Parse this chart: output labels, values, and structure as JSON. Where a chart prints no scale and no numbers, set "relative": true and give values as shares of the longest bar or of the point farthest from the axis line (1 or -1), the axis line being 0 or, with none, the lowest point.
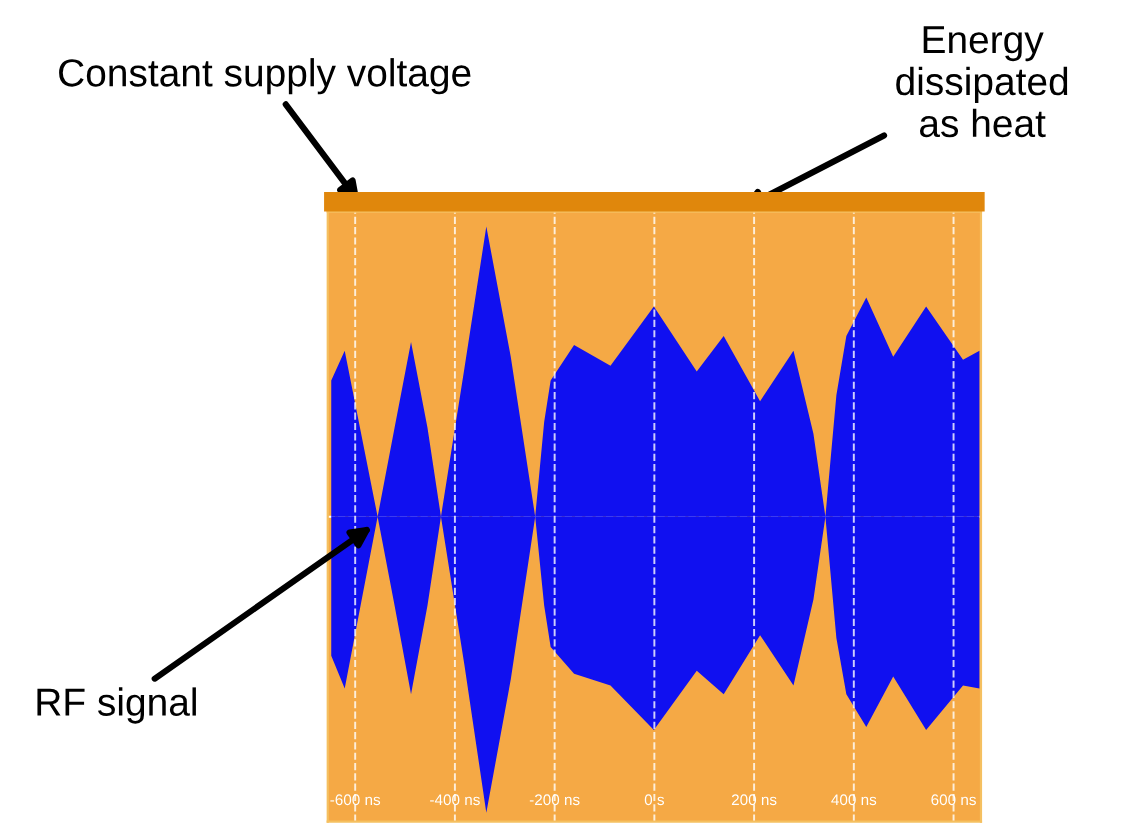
{
  "chart_data": {
    "type": "area",
    "relative": true,
    "x": [
      -648,
      -621,
      -588,
      -555,
      -521,
      -488,
      -455,
      -428,
      -381,
      -337,
      -288,
      -239,
      -221,
      -208,
      -161,
      -88,
      -1,
      85,
      139,
      212,
      279,
      319,
      343,
      365,
      385,
      425,
      479,
      545,
      619,
      652
    ],
    "series": [
      {
        "color": "#1010f0",
        "values": [
          0.46,
          0.56,
          0.28,
          0,
          0.3,
          0.59,
          0.3,
          0,
          0.5,
          0.98,
          0.54,
          0,
          0.32,
          0.46,
          0.58,
          0.51,
          0.71,
          0.49,
          0.61,
          0.39,
          0.56,
          0.28,
          0,
          0.41,
          0.61,
          0.74,
          0.54,
          0.71,
          0.53,
          0.56
        ]
      },
      {
        "color": "#1010f0",
        "values": [
          -0.47,
          -0.58,
          -0.29,
          0,
          -0.3,
          -0.6,
          -0.3,
          0,
          -0.5,
          -1,
          -0.55,
          0,
          -0.3,
          -0.44,
          -0.53,
          -0.57,
          -0.72,
          -0.52,
          -0.6,
          -0.4,
          -0.57,
          -0.28,
          0,
          -0.41,
          -0.6,
          -0.71,
          -0.54,
          -0.72,
          -0.57,
          -0.58
        ]
      }
    ],
    "xlim": [
      -655,
      655
    ],
    "xticks": [
      {
        "value": -600,
        "label": "-600 ns"
      },
      {
        "value": -400,
        "label": "-400 ns"
      },
      {
        "value": -200,
        "label": "-200 ns"
      },
      {
        "value": 0,
        "label": "0 s"
      },
      {
        "value": 200,
        "label": "200 ns"
      },
      {
        "value": 400,
        "label": "400 ns"
      },
      {
        "value": 600,
        "label": "600 ns"
      }
    ],
    "ref_lines": [
      {
        "axis": "y",
        "value": 0,
        "color": "#ffffff",
        "line_style": "dashed"
      }
    ],
    "tick_labels": "x",
    "grid": "x",
    "legend": false,
    "annotations": [
      "Constant supply voltage",
      "Energy\ndissipated\nas heat",
      "RF signal"
    ]
  }
}
